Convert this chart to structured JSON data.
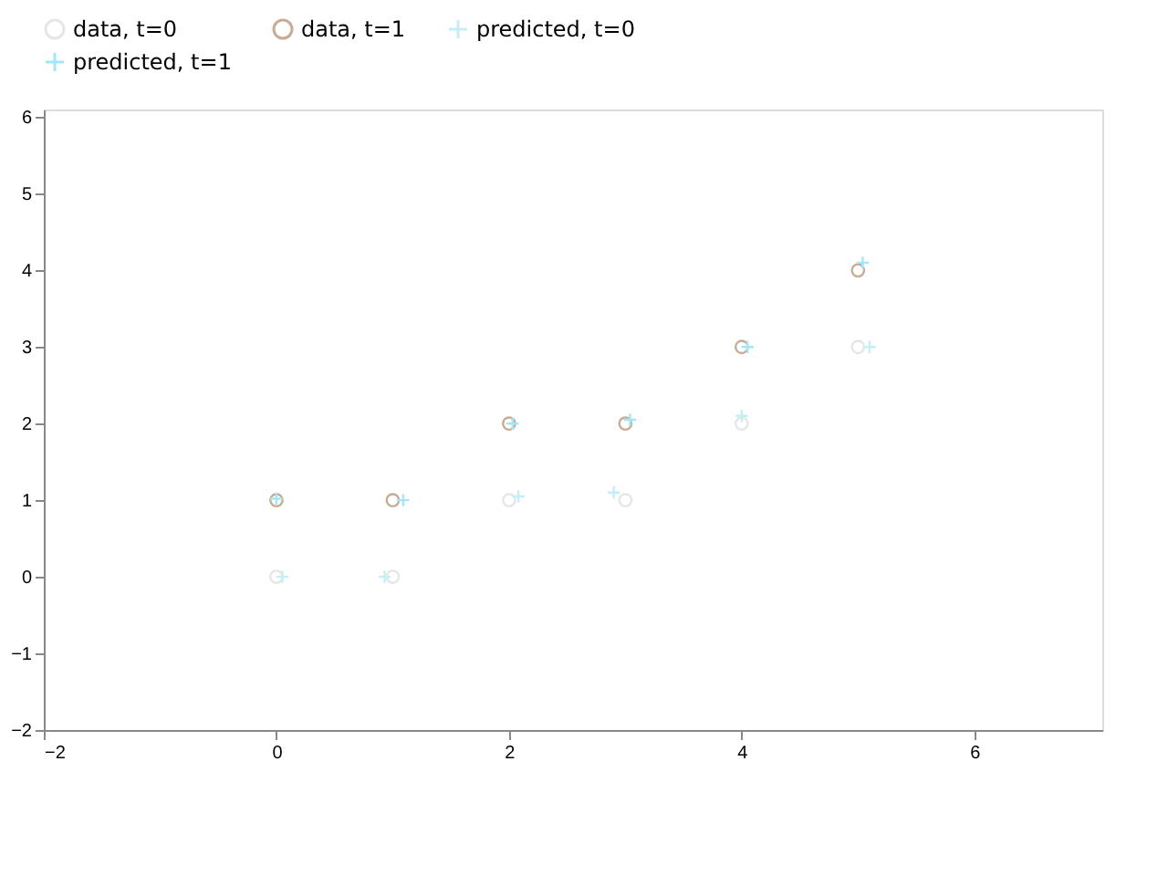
{
  "chart_data": {
    "type": "scatter",
    "xlim": [
      -2,
      7.1
    ],
    "ylim": [
      -2,
      6.1
    ],
    "xticks": [
      -2,
      0,
      2,
      4,
      6
    ],
    "yticks": [
      -2,
      -1,
      0,
      1,
      2,
      3,
      4,
      5,
      6
    ],
    "grid": false,
    "legend": "top",
    "series": [
      {
        "name": "data, t=0",
        "color": "#e6e6e6",
        "marker": "circle",
        "x": [
          0,
          1,
          2,
          3,
          4,
          5
        ],
        "values": [
          0,
          0,
          1,
          1,
          2,
          3
        ]
      },
      {
        "name": "data, t=1",
        "color": "#c8ac94",
        "marker": "circle",
        "x": [
          0,
          1,
          2,
          3,
          4,
          5
        ],
        "values": [
          1,
          1,
          2,
          2,
          3,
          4
        ]
      },
      {
        "name": "predicted, t=0",
        "color": "#c4eef8",
        "marker": "cross",
        "x": [
          0.05,
          0.93,
          2.08,
          2.9,
          4.0,
          5.1
        ],
        "values": [
          0,
          0,
          1.05,
          1.1,
          2.1,
          3.0
        ]
      },
      {
        "name": "predicted, t=1",
        "color": "#a4e6f8",
        "marker": "cross",
        "x": [
          0.0,
          1.09,
          2.03,
          3.04,
          4.05,
          5.04
        ],
        "values": [
          1.02,
          1.0,
          2.0,
          2.05,
          3.0,
          4.1
        ]
      }
    ]
  }
}
